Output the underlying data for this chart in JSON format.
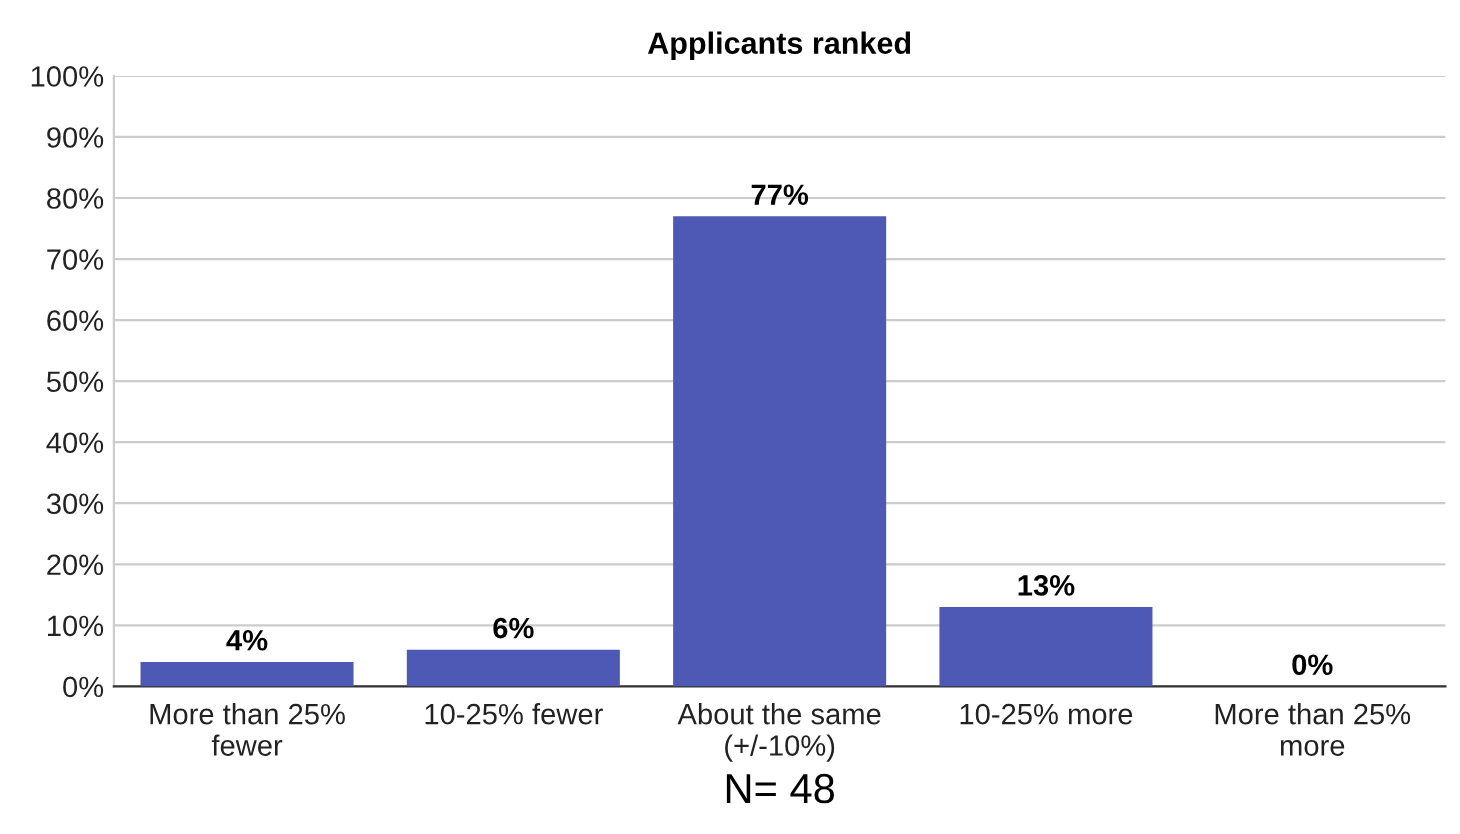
{
  "chart_data": {
    "type": "bar",
    "title": "Applicants ranked",
    "xlabel": "N= 48",
    "categories": [
      "More than 25%\nfewer",
      "10-25% fewer",
      "About the same\n(+/-10%)",
      "10-25% more",
      "More than 25%\nmore"
    ],
    "values": [
      4,
      6,
      77,
      13,
      0
    ],
    "value_labels": [
      "4%",
      "6%",
      "77%",
      "13%",
      "0%"
    ],
    "color": "#4e58b5",
    "ylim": [
      0,
      100
    ],
    "yticks": [
      {
        "value": 0,
        "label": "0%"
      },
      {
        "value": 10,
        "label": "10%"
      },
      {
        "value": 20,
        "label": "20%"
      },
      {
        "value": 30,
        "label": "30%"
      },
      {
        "value": 40,
        "label": "40%"
      },
      {
        "value": 50,
        "label": "50%"
      },
      {
        "value": 60,
        "label": "60%"
      },
      {
        "value": 70,
        "label": "70%"
      },
      {
        "value": 80,
        "label": "80%"
      },
      {
        "value": 90,
        "label": "90%"
      },
      {
        "value": 100,
        "label": "100%"
      }
    ],
    "grid": "y"
  }
}
